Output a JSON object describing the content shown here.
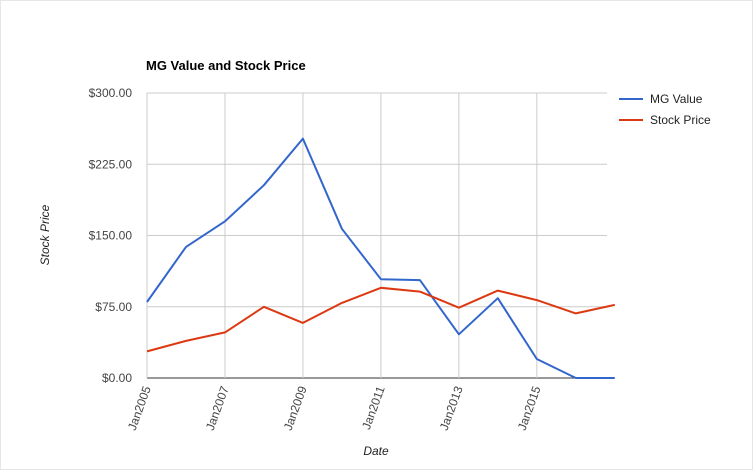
{
  "chart_data": {
    "type": "line",
    "title": "MG Value and Stock Price",
    "xlabel": "Date",
    "ylabel": "Stock Price",
    "x": [
      2005,
      2006,
      2007,
      2008,
      2009,
      2010,
      2011,
      2012,
      2013,
      2014,
      2015,
      2016,
      2017
    ],
    "x_tick_values": [
      2005,
      2007,
      2009,
      2011,
      2013,
      2015
    ],
    "x_tick_labels": [
      "Jan2005",
      "Jan2007",
      "Jan2009",
      "Jan2011",
      "Jan2013",
      "Jan2015"
    ],
    "y_ticks": [
      0,
      75,
      150,
      225,
      300
    ],
    "y_tick_labels": [
      "$0.00",
      "$75.00",
      "$150.00",
      "$225.00",
      "$300.00"
    ],
    "ylim": [
      0,
      300
    ],
    "xlim": [
      2005,
      2016.8
    ],
    "grid": true,
    "legend_position": "right",
    "series": [
      {
        "name": "MG Value",
        "color": "#3366cc",
        "values": [
          80,
          138,
          165,
          203,
          252,
          157,
          104,
          103,
          46,
          84,
          20,
          0,
          0
        ]
      },
      {
        "name": "Stock Price",
        "color": "#dc3912",
        "values": [
          28,
          39,
          48,
          75,
          58,
          79,
          95,
          91,
          74,
          92,
          82,
          68,
          77
        ]
      }
    ]
  }
}
